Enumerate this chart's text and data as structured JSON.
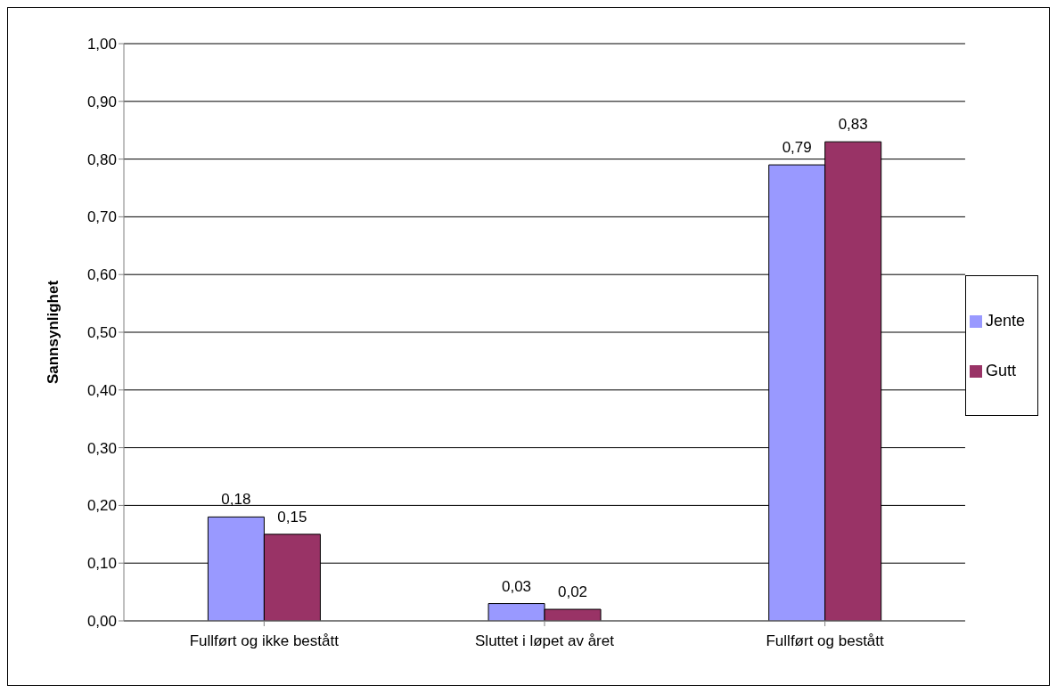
{
  "chart_data": {
    "type": "bar",
    "ylabel": "Sannsynlighet",
    "categories": [
      "Fullført og ikke bestått",
      "Sluttet i løpet av året",
      "Fullført og bestått"
    ],
    "series": [
      {
        "name": "Jente",
        "color": "#9999ff",
        "values": [
          0.18,
          0.03,
          0.79
        ],
        "value_labels": [
          "0,18",
          "0,03",
          "0,79"
        ]
      },
      {
        "name": "Gutt",
        "color": "#993366",
        "values": [
          0.15,
          0.02,
          0.83
        ],
        "value_labels": [
          "0,15",
          "0,02",
          "0,83"
        ]
      }
    ],
    "ylim": [
      0,
      1
    ],
    "yticks": [
      {
        "value": 0,
        "label": "0,00"
      },
      {
        "value": 0.1,
        "label": "0,10"
      },
      {
        "value": 0.2,
        "label": "0,20"
      },
      {
        "value": 0.3,
        "label": "0,30"
      },
      {
        "value": 0.4,
        "label": "0,40"
      },
      {
        "value": 0.5,
        "label": "0,50"
      },
      {
        "value": 0.6,
        "label": "0,60"
      },
      {
        "value": 0.7,
        "label": "0,70"
      },
      {
        "value": 0.8,
        "label": "0,80"
      },
      {
        "value": 0.9,
        "label": "0,90"
      },
      {
        "value": 1,
        "label": "1,00"
      }
    ],
    "grid": "y",
    "legend": "right"
  }
}
